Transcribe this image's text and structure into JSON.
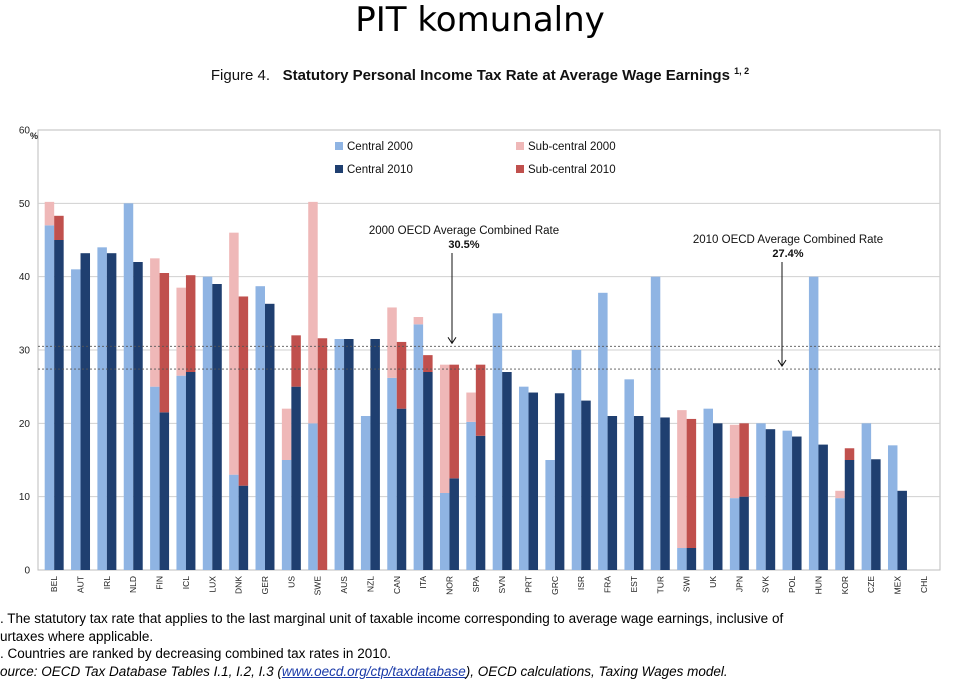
{
  "slide_title": "PIT komunalny",
  "figure": {
    "label": "Figure 4.",
    "title": "Statutory Personal Income Tax Rate at Average Wage Earnings",
    "superscript": "1, 2"
  },
  "colors": {
    "central_2000": "#8fb4e3",
    "subcentral_2000": "#efb8b8",
    "central_2010": "#1f3f70",
    "subcentral_2010": "#c0504d",
    "gridline": "#d0d0d0"
  },
  "chart_data": {
    "type": "bar",
    "ylabel": "%",
    "ylim": [
      0,
      60
    ],
    "yticks": [
      0,
      10,
      20,
      30,
      40,
      50,
      60
    ],
    "grid": true,
    "legend_position": "top",
    "categories": [
      "BEL",
      "AUT",
      "IRL",
      "NLD",
      "FIN",
      "ICL",
      "LUX",
      "DNK",
      "GER",
      "US",
      "SWE",
      "AUS",
      "NZL",
      "CAN",
      "ITA",
      "NOR",
      "SPA",
      "SVN",
      "PRT",
      "GRC",
      "ISR",
      "FRA",
      "EST",
      "TUR",
      "SWI",
      "UK",
      "JPN",
      "SVK",
      "POL",
      "HUN",
      "KOR",
      "CZE",
      "MEX",
      "CHL"
    ],
    "series": [
      {
        "name": "Central 2000",
        "values": [
          47,
          41,
          44,
          50,
          25,
          26.5,
          40,
          13,
          38.7,
          15,
          20,
          31.5,
          21,
          26.2,
          33.5,
          10.5,
          20.2,
          35,
          25,
          15,
          30,
          37.8,
          26,
          40,
          3,
          22,
          9.8,
          20,
          19,
          40,
          9.8,
          20,
          17,
          0
        ]
      },
      {
        "name": "Sub-central 2000",
        "values": [
          3.2,
          0,
          0,
          0,
          17.5,
          12,
          0,
          33,
          0,
          7,
          30.2,
          0,
          0,
          9.6,
          1,
          17.5,
          4,
          0,
          0,
          0,
          0,
          0,
          0,
          0,
          18.8,
          0,
          10,
          0,
          0,
          0,
          1,
          0,
          0,
          0
        ]
      },
      {
        "name": "Central 2010",
        "values": [
          45,
          43.2,
          43.2,
          42,
          21.5,
          27,
          39,
          11.5,
          36.3,
          25,
          0,
          31.5,
          31.5,
          22,
          27,
          12.5,
          18.3,
          27,
          24.2,
          24.1,
          23.1,
          21,
          21,
          20.8,
          3,
          20,
          10,
          19.2,
          18.2,
          17.1,
          15,
          15.1,
          10.8,
          0
        ]
      },
      {
        "name": "Sub-central 2010",
        "values": [
          3.3,
          0,
          0,
          0,
          19,
          13.2,
          0,
          25.8,
          0,
          7,
          31.6,
          0,
          0,
          9.1,
          2.3,
          15.5,
          9.7,
          0,
          0,
          0,
          0,
          0,
          0,
          0,
          17.6,
          0,
          10,
          0,
          0,
          0,
          1.6,
          0,
          0,
          0
        ]
      }
    ],
    "reference_lines": [
      {
        "label": "2000 OECD Average Combined Rate",
        "value_label": "30.5%",
        "value": 30.5
      },
      {
        "label": "2010 OECD Average Combined Rate",
        "value_label": "27.4%",
        "value": 27.4
      }
    ]
  },
  "notes": {
    "note1_line1": ". The statutory tax rate that applies to the last marginal unit of taxable income corresponding to average wage earnings, inclusive of",
    "note1_line2": "urtaxes where applicable.",
    "note2": ". Countries are ranked by decreasing combined tax rates in 2010.",
    "source_prefix": "ource: OECD Tax Database Tables I.1, I.2, I.3 (",
    "source_link": "www.oecd.org/ctp/taxdatabase",
    "source_suffix": "), OECD calculations, Taxing Wages model."
  }
}
